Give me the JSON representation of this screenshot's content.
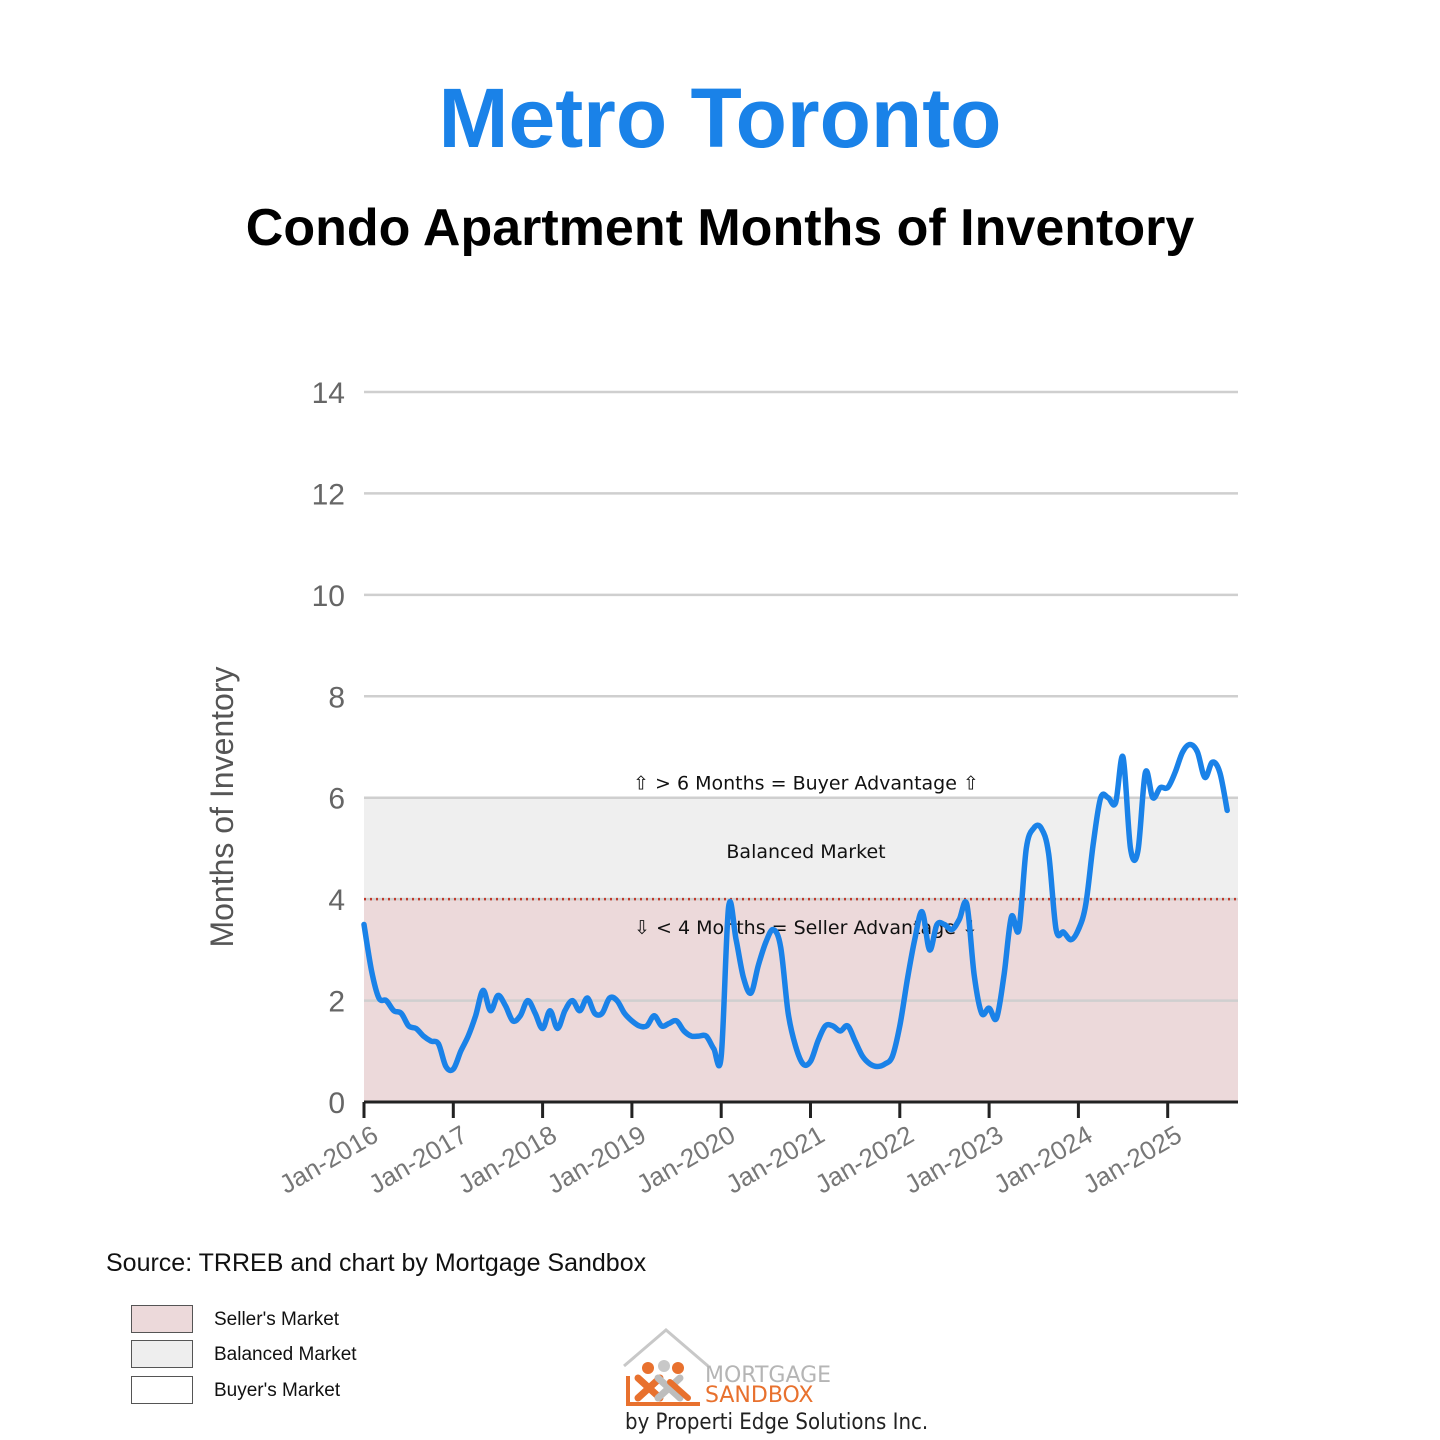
{
  "title": "Metro Toronto",
  "subtitle": "Condo Apartment Months of Inventory",
  "source": "Source: TRREB and chart by Mortgage Sandbox",
  "legend": [
    {
      "label": "Seller's Market",
      "color": "#ecd9da"
    },
    {
      "label": "Balanced Market",
      "color": "#eeeeee"
    },
    {
      "label": "Buyer's Market",
      "color": "#ffffff"
    }
  ],
  "logo": {
    "line1": "MORTGAGE",
    "line2": "SANDBOX",
    "byline": "by Properti Edge Solutions Inc.",
    "icon": "house-people-logo-icon"
  },
  "chart_data": {
    "type": "line",
    "ylabel": "Months of Inventory",
    "xlabel": "",
    "ylim": [
      0,
      14
    ],
    "yticks": [
      0,
      2,
      4,
      6,
      8,
      10,
      12,
      14
    ],
    "xticks": [
      "Jan-2016",
      "Jan-2017",
      "Jan-2018",
      "Jan-2019",
      "Jan-2020",
      "Jan-2021",
      "Jan-2022",
      "Jan-2023",
      "Jan-2024",
      "Jan-2025"
    ],
    "grid": true,
    "bands": [
      {
        "from": 0,
        "to": 4,
        "color": "#ecd9da",
        "name": "Seller's Market"
      },
      {
        "from": 4,
        "to": 6,
        "color": "#efefef",
        "name": "Balanced Market"
      }
    ],
    "threshold_line": {
      "value": 4,
      "color": "#c0392b",
      "style": "dotted"
    },
    "annotations": [
      {
        "text": "⇧ > 6 Months = Buyer Advantage ⇧",
        "y": 6.3
      },
      {
        "text": "Balanced Market",
        "y": 4.95
      },
      {
        "text": "⇩ < 4 Months = Seller Advantage ⇩",
        "y": 3.45
      }
    ],
    "series": [
      {
        "color": "#1a82e8",
        "start": "Jan-2016",
        "values": [
          3.5,
          2.6,
          2.05,
          2.0,
          1.8,
          1.75,
          1.5,
          1.45,
          1.3,
          1.2,
          1.15,
          0.7,
          0.65,
          1.0,
          1.3,
          1.7,
          2.2,
          1.8,
          2.1,
          1.9,
          1.6,
          1.7,
          2.0,
          1.75,
          1.45,
          1.8,
          1.45,
          1.8,
          2.0,
          1.8,
          2.05,
          1.75,
          1.75,
          2.05,
          2.0,
          1.75,
          1.6,
          1.5,
          1.5,
          1.7,
          1.5,
          1.55,
          1.6,
          1.4,
          1.3,
          1.3,
          1.3,
          1.05,
          0.9,
          3.85,
          3.2,
          2.45,
          2.15,
          2.7,
          3.15,
          3.4,
          3.05,
          1.75,
          1.1,
          0.75,
          0.8,
          1.2,
          1.5,
          1.5,
          1.4,
          1.5,
          1.2,
          0.9,
          0.75,
          0.7,
          0.75,
          0.9,
          1.5,
          2.4,
          3.2,
          3.75,
          3.0,
          3.5,
          3.5,
          3.4,
          3.6,
          3.9,
          2.5,
          1.75,
          1.85,
          1.65,
          2.5,
          3.65,
          3.4,
          5.0,
          5.4,
          5.4,
          4.9,
          3.4,
          3.35,
          3.2,
          3.4,
          3.9,
          5.1,
          6.0,
          6.0,
          5.9,
          6.8,
          5.0,
          4.95,
          6.5,
          6.0,
          6.2,
          6.2,
          6.5,
          6.9,
          7.05,
          6.9,
          6.4,
          6.7,
          6.5,
          5.75
        ]
      }
    ]
  }
}
